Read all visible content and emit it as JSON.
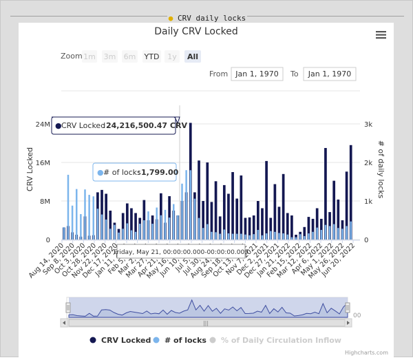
{
  "frame_title": "CRV daily locks",
  "chart_data": {
    "type": "bar",
    "title": "Daily CRV Locked",
    "ylabel": "CRV Locked",
    "y2label": "# of daily locks",
    "ylim": [
      0,
      24000000
    ],
    "y2lim": [
      0,
      3000
    ],
    "y_ticks": [
      {
        "value": 0,
        "label": "0"
      },
      {
        "value": 8000000,
        "label": "8M"
      },
      {
        "value": 16000000,
        "label": "16M"
      },
      {
        "value": 24000000,
        "label": "24M"
      }
    ],
    "y2_ticks": [
      {
        "value": 0,
        "label": "0"
      },
      {
        "value": 1000,
        "label": "1k"
      },
      {
        "value": 2000,
        "label": "2k"
      },
      {
        "value": 3000,
        "label": "3k"
      }
    ],
    "x_tick_labels": [
      "Aug 14, 2020",
      "Sep 8, 2020",
      "Oct 3, 2020",
      "Oct 28, 2020",
      "Nov 22, 2020",
      "Dec 17, 2020",
      "Jan 11, 2021",
      "Feb 5, 2021",
      "Mar 2, 2021",
      "Mar 27, 2021",
      "Apr 21, 2021",
      "May 16, 2021",
      "Jun 10, 2021",
      "Jul 5, 2021",
      "Jul 30, 2021",
      "Aug 24, 2021",
      "Sep 18, 2021",
      "Oct 13, 2021",
      "Nov 7, 2021",
      "Dec 2, 2021",
      "Dec 27, 2021",
      "Jan 21, 2022",
      "Feb 15, 2022",
      "Mar 12, 2022",
      "Apr 6, 2022",
      "May 1, 2022",
      "May 26, 2022",
      "Jun 20, 2022"
    ],
    "series": [
      {
        "name": "CRV Locked",
        "color": "#141852",
        "axis": "left",
        "values": [
          2500000,
          2800000,
          1500000,
          1000000,
          600000,
          4800000,
          800000,
          900000,
          9800000,
          10300000,
          9500000,
          6000000,
          3500000,
          2200000,
          5500000,
          7500000,
          6500000,
          5500000,
          4500000,
          8200000,
          4000000,
          5000000,
          4200000,
          9600000,
          3500000,
          9000000,
          6000000,
          5000000,
          8000000,
          9800000,
          24216500,
          9800000,
          16400000,
          8000000,
          16000000,
          7800000,
          12100000,
          4800000,
          11300000,
          9500000,
          14000000,
          8500000,
          13300000,
          4500000,
          4600000,
          5000000,
          8000000,
          6500000,
          16300000,
          4500000,
          11500000,
          6800000,
          13600000,
          5500000,
          5000000,
          1000000,
          1600000,
          2600000,
          4700000,
          4300000,
          6500000,
          4300000,
          19000000,
          5700000,
          12200000,
          8300000,
          4000000,
          14100000,
          19600000
        ]
      },
      {
        "name": "# of locks",
        "color": "#7cb5ec",
        "axis": "right",
        "values": [
          320,
          1680,
          880,
          1310,
          660,
          1300,
          1160,
          1120,
          800,
          650,
          520,
          280,
          380,
          180,
          280,
          420,
          240,
          200,
          410,
          500,
          730,
          410,
          830,
          630,
          770,
          570,
          920,
          630,
          1450,
          1800,
          1799,
          1060,
          560,
          300,
          400,
          200,
          190,
          150,
          260,
          160,
          150,
          150,
          150,
          130,
          110,
          140,
          250,
          110,
          160,
          220,
          200,
          170,
          160,
          130,
          60,
          60,
          140,
          90,
          160,
          200,
          310,
          250,
          380,
          350,
          400,
          300,
          280,
          350,
          470
        ]
      },
      {
        "name": "% of Daily Circulation Inflow",
        "color": "#cccccc",
        "hidden": true,
        "values": []
      }
    ],
    "legend_position": "bottom-center",
    "tooltip": {
      "header": "Friday, May 21, 00:00:00.000-00:00:00.009",
      "lines": [
        {
          "series": "CRV Locked",
          "value": "24,216,500.47 CRV"
        },
        {
          "series": "# of locks",
          "value": "1,799.00"
        }
      ]
    },
    "navigator_max_label": "00"
  },
  "range_selector": {
    "zoom_label": "Zoom",
    "buttons": [
      "1m",
      "3m",
      "6m",
      "YTD",
      "1y",
      "All"
    ],
    "active_button": "All",
    "from_label": "From",
    "from_value": "Jan 1, 1970",
    "to_label": "To",
    "to_value": "Jan 1, 1970"
  },
  "credits": "Highcharts.com"
}
